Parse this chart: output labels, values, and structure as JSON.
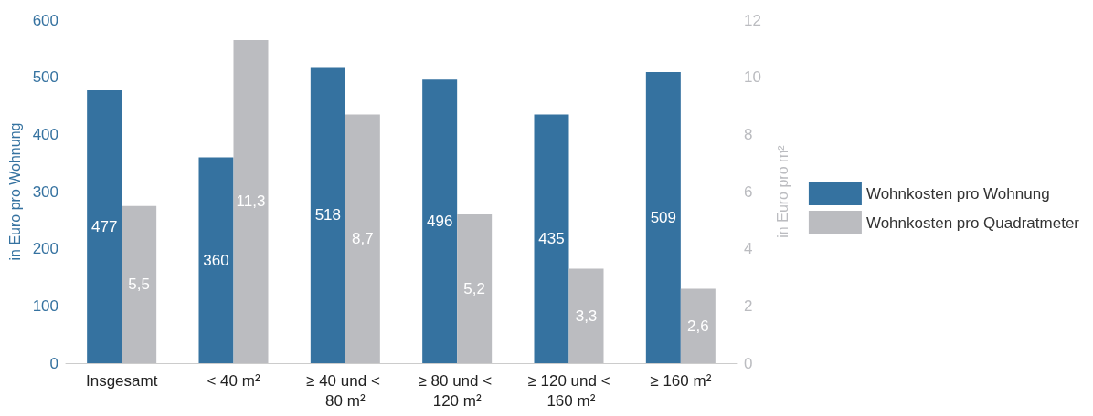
{
  "chart_data": {
    "type": "bar",
    "categories": [
      "Insgesamt",
      "< 40 m²",
      "≥ 40 und < 80 m²",
      "≥ 80 und < 120 m²",
      "≥ 120 und < 160 m²",
      "≥ 160 m²"
    ],
    "series": [
      {
        "name": "Wohnkosten pro Wohnung",
        "color": "#3572a0",
        "values": [
          477,
          360,
          518,
          496,
          435,
          509
        ],
        "value_labels": [
          "477",
          "360",
          "518",
          "496",
          "435",
          "509"
        ]
      },
      {
        "name": "Wohnkosten pro Quadratmeter",
        "color": "#bbbcc0",
        "axis": "y2",
        "values": [
          5.5,
          11.3,
          8.7,
          5.2,
          3.3,
          2.6
        ],
        "value_labels": [
          "5,5",
          "11,3",
          "8,7",
          "5,2",
          "3,3",
          "2,6"
        ]
      }
    ],
    "ylabel": "in Euro pro Wohnung",
    "y2label": "in Euro pro m²",
    "ylim": [
      0,
      600
    ],
    "yticks": [
      0,
      100,
      200,
      300,
      400,
      500,
      600
    ],
    "y2lim": [
      0,
      12
    ],
    "y2ticks": [
      0,
      2,
      4,
      6,
      8,
      10,
      12
    ],
    "grid": false,
    "legend": "right"
  }
}
